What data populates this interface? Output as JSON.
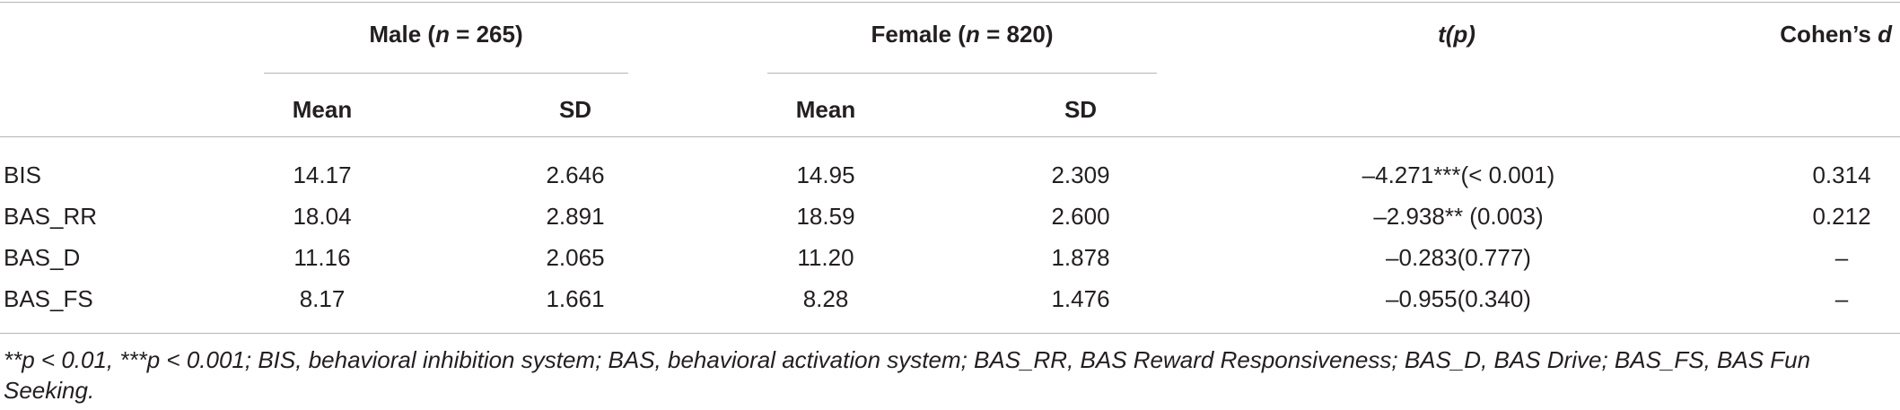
{
  "header": {
    "group_male": {
      "prefix": "Male (",
      "n_symbol": "n",
      "suffix": " = 265)"
    },
    "group_female": {
      "prefix": "Female (",
      "n_symbol": "n",
      "suffix": " = 820)"
    },
    "t_col": "t(p)",
    "d_col": "Cohen’s d",
    "sub_mean": "Mean",
    "sub_sd": "SD"
  },
  "rows": [
    {
      "label": "BIS",
      "male_mean": "14.17",
      "male_sd": "2.646",
      "female_mean": "14.95",
      "female_sd": "2.309",
      "t": "–4.271***(< 0.001)",
      "d": "0.314"
    },
    {
      "label": "BAS_RR",
      "male_mean": "18.04",
      "male_sd": "2.891",
      "female_mean": "18.59",
      "female_sd": "2.600",
      "t": "–2.938** (0.003)",
      "d": "0.212"
    },
    {
      "label": "BAS_D",
      "male_mean": "11.16",
      "male_sd": "2.065",
      "female_mean": "11.20",
      "female_sd": "1.878",
      "t": "–0.283(0.777)",
      "d": "–"
    },
    {
      "label": "BAS_FS",
      "male_mean": "8.17",
      "male_sd": "1.661",
      "female_mean": "8.28",
      "female_sd": "1.476",
      "t": "–0.955(0.340)",
      "d": "–"
    }
  ],
  "footnote": "**p < 0.01, ***p < 0.001; BIS, behavioral inhibition system; BAS, behavioral activation system; BAS_RR, BAS Reward Responsiveness; BAS_D, BAS Drive; BAS_FS, BAS Fun Seeking."
}
